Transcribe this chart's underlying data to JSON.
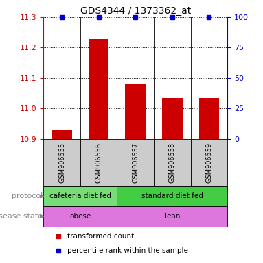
{
  "title": "GDS4344 / 1373362_at",
  "samples": [
    "GSM906555",
    "GSM906556",
    "GSM906557",
    "GSM906558",
    "GSM906559"
  ],
  "bar_values": [
    10.928,
    11.228,
    11.082,
    11.035,
    11.035
  ],
  "percentile_values": [
    100,
    100,
    100,
    100,
    100
  ],
  "ylim_left": [
    10.9,
    11.3
  ],
  "ylim_right": [
    0,
    100
  ],
  "yticks_left": [
    10.9,
    11.0,
    11.1,
    11.2,
    11.3
  ],
  "yticks_right": [
    0,
    25,
    50,
    75,
    100
  ],
  "bar_color": "#cc0000",
  "dot_color": "#0000cc",
  "protocol_groups": [
    {
      "label": "cafeteria diet fed",
      "start": 0,
      "end": 2,
      "color": "#77dd77"
    },
    {
      "label": "standard diet fed",
      "start": 2,
      "end": 5,
      "color": "#44cc44"
    }
  ],
  "disease_groups": [
    {
      "label": "obese",
      "start": 0,
      "end": 2,
      "color": "#dd77dd"
    },
    {
      "label": "lean",
      "start": 2,
      "end": 5,
      "color": "#dd77dd"
    }
  ],
  "sample_box_color": "#cccccc",
  "protocol_label": "protocol",
  "disease_label": "disease state",
  "legend_items": [
    {
      "label": "transformed count",
      "color": "#cc0000",
      "marker": "s"
    },
    {
      "label": "percentile rank within the sample",
      "color": "#0000cc",
      "marker": "s"
    }
  ],
  "tick_label_color_left": "#cc0000",
  "tick_label_color_right": "#0000cc",
  "bar_width": 0.55,
  "background_color": "#ffffff"
}
